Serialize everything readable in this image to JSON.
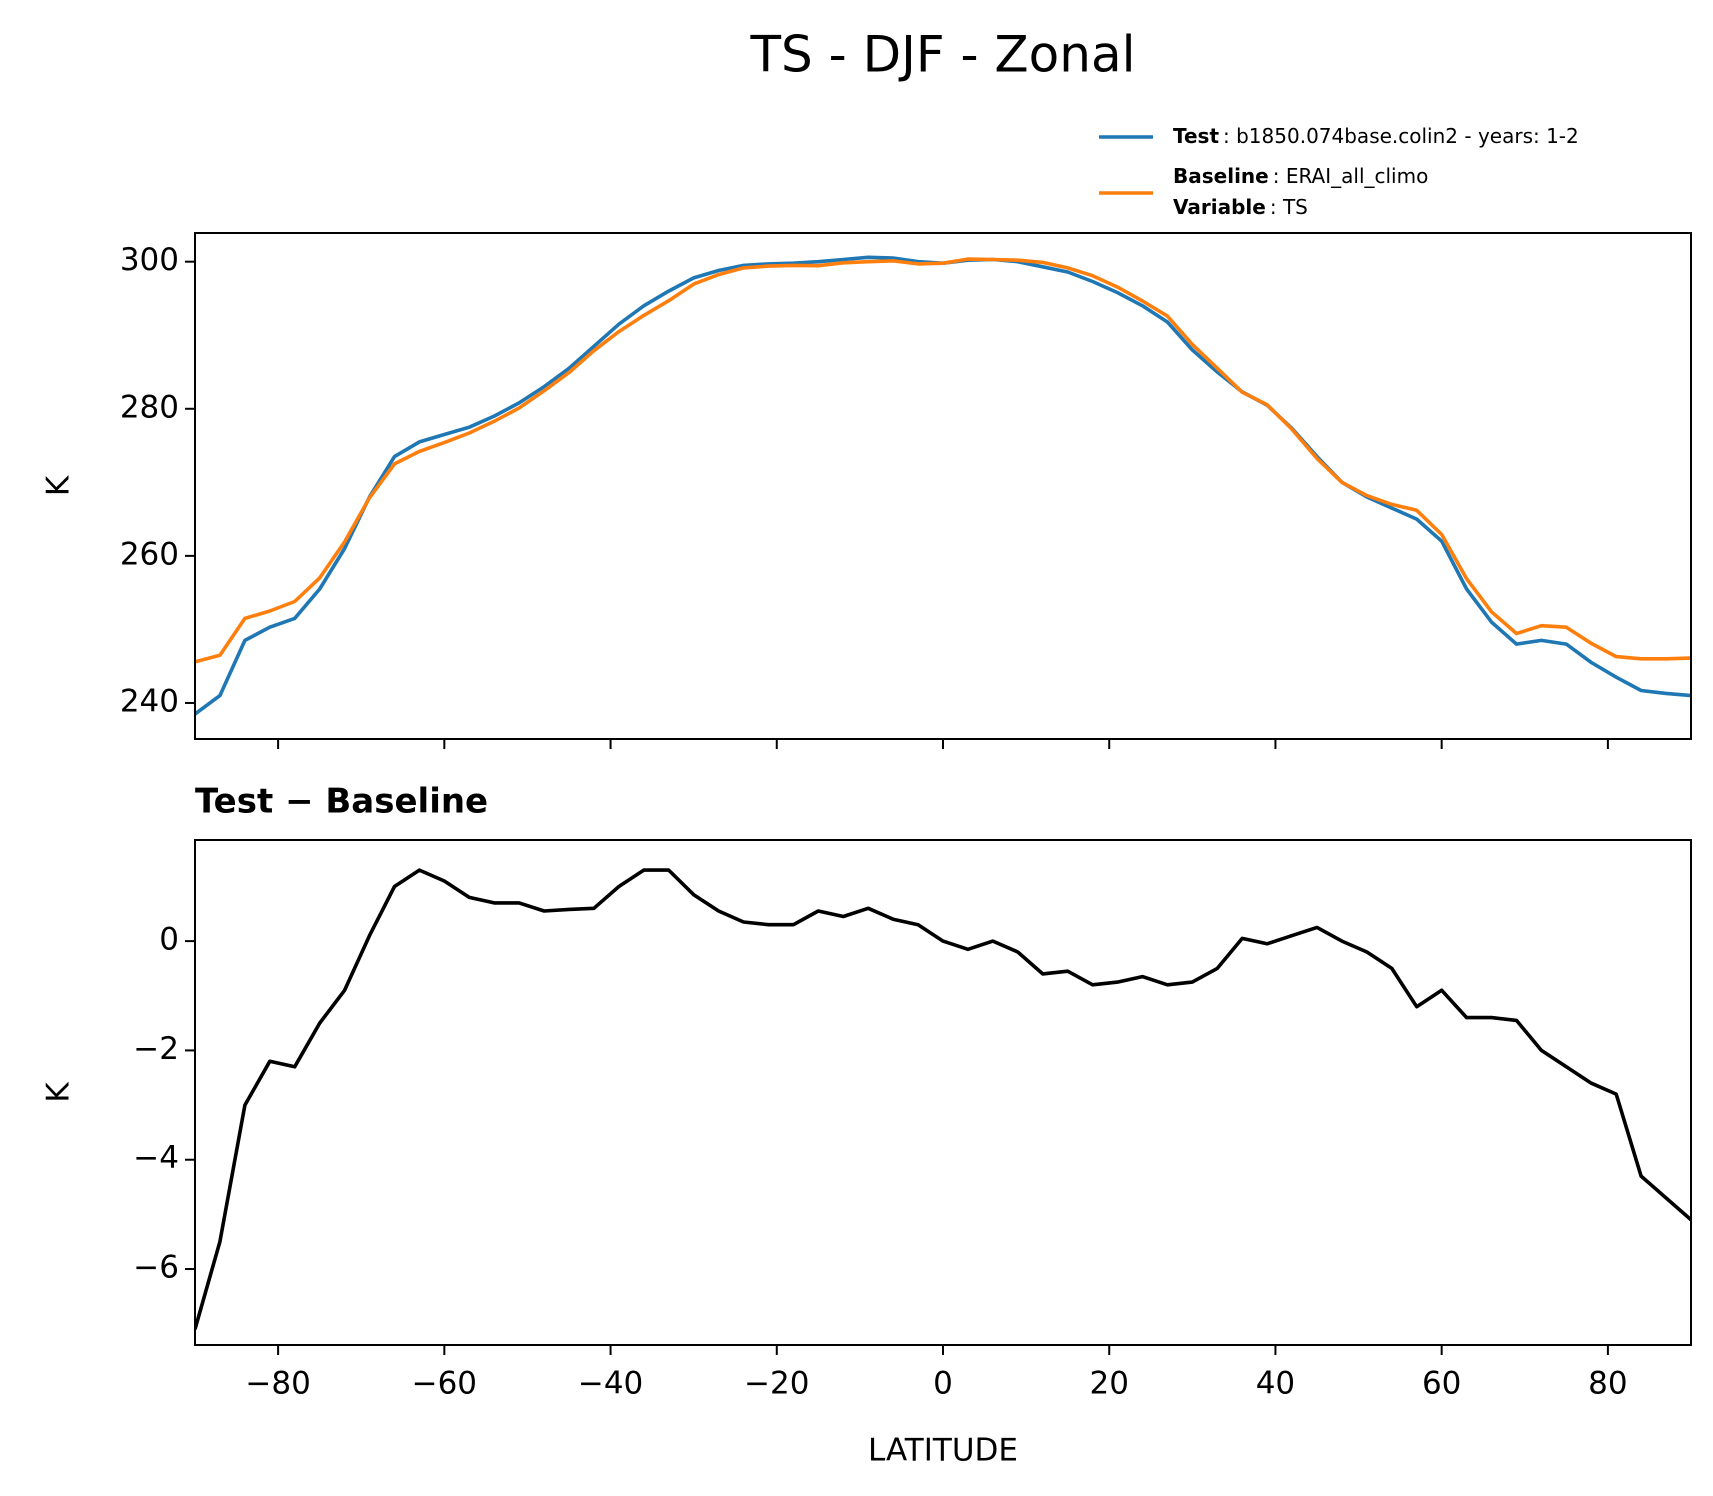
{
  "title": "TS - DJF - Zonal",
  "chart_data": [
    {
      "type": "line",
      "ylabel": "K",
      "x": [
        -90,
        -87,
        -84,
        -81,
        -78,
        -75,
        -72,
        -69,
        -66,
        -63,
        -60,
        -57,
        -54,
        -51,
        -48,
        -45,
        -42,
        -39,
        -36,
        -33,
        -30,
        -27,
        -24,
        -21,
        -18,
        -15,
        -12,
        -9,
        -6,
        -3,
        0,
        3,
        6,
        9,
        12,
        15,
        18,
        21,
        24,
        27,
        30,
        33,
        36,
        39,
        42,
        45,
        48,
        51,
        54,
        57,
        60,
        63,
        66,
        69,
        72,
        75,
        78,
        81,
        84,
        87,
        90
      ],
      "series": [
        {
          "name": "Test",
          "description": ": b1850.074base.colin2 - years: 1-2",
          "color": "#1f77b4",
          "values": [
            238.5,
            241,
            248.5,
            250.3,
            251.5,
            255.5,
            261,
            268,
            273.5,
            275.5,
            276.5,
            277.5,
            279,
            280.8,
            283,
            285.5,
            288.5,
            291.5,
            294,
            296,
            297.8,
            298.8,
            299.5,
            299.7,
            299.8,
            300,
            300.3,
            300.6,
            300.5,
            300,
            299.8,
            300.2,
            300.3,
            300,
            299.3,
            298.6,
            297.3,
            295.8,
            294,
            291.8,
            288,
            285,
            282.3,
            280.5,
            277.3,
            273.5,
            270,
            268,
            266.5,
            265,
            262,
            255.5,
            251,
            248,
            248.5,
            248,
            245.5,
            243.5,
            241.7,
            241.3,
            241
          ]
        },
        {
          "name": "Baseline",
          "description": ": ERAI_all_climo",
          "color": "#ff7f0e",
          "values": [
            245.6,
            246.5,
            251.5,
            252.5,
            253.8,
            257,
            261.9,
            267.9,
            272.5,
            274.2,
            275.4,
            276.7,
            278.3,
            280.1,
            282.45,
            284.92,
            287.9,
            290.5,
            292.7,
            294.7,
            296.95,
            298.25,
            299.15,
            299.4,
            299.5,
            299.45,
            299.85,
            300,
            300.1,
            299.7,
            299.8,
            300.35,
            300.3,
            300.2,
            299.9,
            299.15,
            298.1,
            296.55,
            294.65,
            292.6,
            288.75,
            285.5,
            282.25,
            280.55,
            277.2,
            273.25,
            270,
            268.2,
            267,
            266.2,
            262.9,
            256.9,
            252.4,
            249.45,
            250.5,
            250.3,
            248.1,
            246.3,
            246,
            246,
            246.1
          ]
        }
      ],
      "legend_note": {
        "label": "Variable",
        "text": ": TS"
      },
      "legend": "upper right",
      "xlim": [
        -90,
        90
      ],
      "xticks": [
        -80,
        -60,
        -40,
        -20,
        0,
        20,
        40,
        60,
        80
      ],
      "show_xtick_labels": false,
      "ylim": [
        235.1,
        303.9
      ],
      "yticks": [
        240,
        260,
        280,
        300
      ]
    },
    {
      "type": "line",
      "title": "Test − Baseline",
      "ylabel": "K",
      "xlabel": "LATITUDE",
      "x": [
        -90,
        -87,
        -84,
        -81,
        -78,
        -75,
        -72,
        -69,
        -66,
        -63,
        -60,
        -57,
        -54,
        -51,
        -48,
        -45,
        -42,
        -39,
        -36,
        -33,
        -30,
        -27,
        -24,
        -21,
        -18,
        -15,
        -12,
        -9,
        -6,
        -3,
        0,
        3,
        6,
        9,
        12,
        15,
        18,
        21,
        24,
        27,
        30,
        33,
        36,
        39,
        42,
        45,
        48,
        51,
        54,
        57,
        60,
        63,
        66,
        69,
        72,
        75,
        78,
        81,
        84,
        87,
        90
      ],
      "series": [
        {
          "color": "#000000",
          "values": [
            -7.1,
            -5.5,
            -3,
            -2.2,
            -2.3,
            -1.5,
            -0.9,
            0.1,
            1.0,
            1.3,
            1.1,
            0.8,
            0.7,
            0.7,
            0.55,
            0.58,
            0.6,
            1.0,
            1.3,
            1.3,
            0.85,
            0.55,
            0.35,
            0.3,
            0.3,
            0.55,
            0.45,
            0.6,
            0.4,
            0.3,
            0,
            -0.15,
            0,
            -0.2,
            -0.6,
            -0.55,
            -0.8,
            -0.75,
            -0.65,
            -0.8,
            -0.75,
            -0.5,
            0.05,
            -0.05,
            0.1,
            0.25,
            0,
            -0.2,
            -0.5,
            -1.2,
            -0.9,
            -1.4,
            -1.4,
            -1.45,
            -2.0,
            -2.3,
            -2.6,
            -2.8,
            -4.3,
            -4.7,
            -5.1
          ]
        }
      ],
      "xlim": [
        -90,
        90
      ],
      "xticks": [
        {
          "value": -80,
          "label": "−80"
        },
        {
          "value": -60,
          "label": "−60"
        },
        {
          "value": -40,
          "label": "−40"
        },
        {
          "value": -20,
          "label": "−20"
        },
        0,
        20,
        40,
        60,
        80
      ],
      "ylim": [
        -7.39,
        1.85
      ],
      "yticks": [
        {
          "value": -6,
          "label": "−6"
        },
        {
          "value": -4,
          "label": "−4"
        },
        {
          "value": -2,
          "label": "−2"
        },
        0
      ]
    }
  ]
}
